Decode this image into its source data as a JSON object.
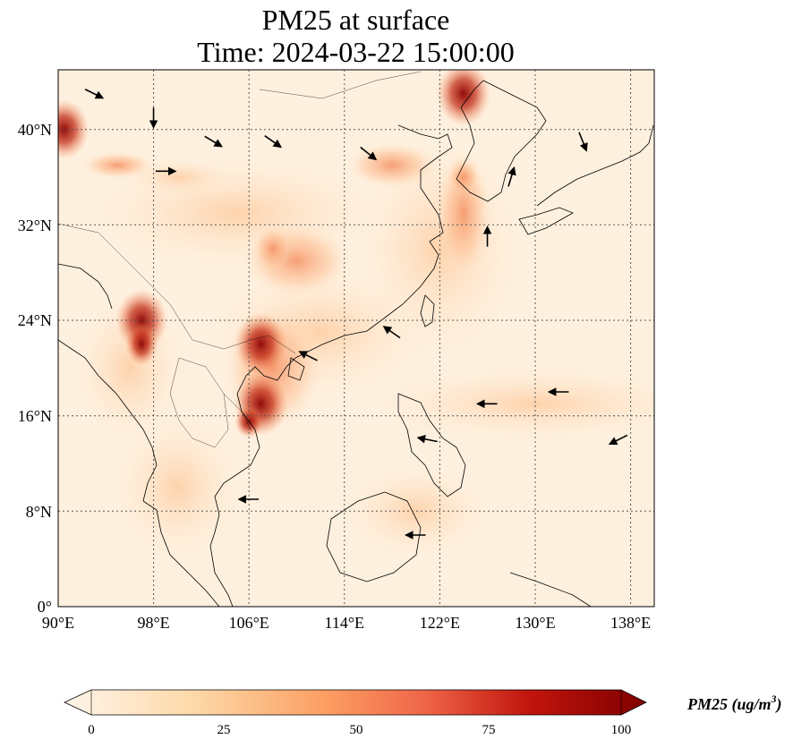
{
  "title_line1": "PM25 at surface",
  "title_line2": "Time: 2024-03-22 15:00:00",
  "lat_ticks": [
    "40°N",
    "32°N",
    "24°N",
    "16°N",
    "8°N",
    "0°"
  ],
  "lon_ticks": [
    "90°E",
    "98°E",
    "106°E",
    "114°E",
    "122°E",
    "130°E",
    "138°E"
  ],
  "colorbar": {
    "label": "PM25 (ug/m",
    "label_sup": "3",
    "label_close": ")",
    "ticks": [
      "0",
      "25",
      "50",
      "75",
      "100"
    ],
    "colors": [
      "#fff5eb",
      "#fdd0a2",
      "#fd8d3c",
      "#d94801",
      "#8c2d04",
      "#7f0000"
    ]
  },
  "chart_data": {
    "type": "heatmap",
    "variable": "PM25",
    "units": "ug/m3",
    "colormap": "OrRd",
    "range": [
      0,
      100
    ],
    "extent": {
      "lon": [
        90,
        140
      ],
      "lat": [
        0,
        45
      ]
    },
    "hotspots": [
      {
        "lon": 107,
        "lat": 17,
        "value": 100
      },
      {
        "lon": 107,
        "lat": 22,
        "value": 95
      },
      {
        "lon": 97,
        "lat": 24,
        "value": 95
      },
      {
        "lon": 124,
        "lat": 43,
        "value": 100
      },
      {
        "lon": 90.5,
        "lat": 40,
        "value": 90
      },
      {
        "lon": 108,
        "lat": 30,
        "value": 60
      },
      {
        "lon": 124,
        "lat": 36,
        "value": 45
      }
    ],
    "wind_vectors": [
      {
        "lon": 93,
        "lat": 43,
        "u": 1,
        "v": -0.5
      },
      {
        "lon": 98,
        "lat": 41,
        "u": 0,
        "v": -1
      },
      {
        "lon": 103,
        "lat": 39,
        "u": 1,
        "v": -0.6
      },
      {
        "lon": 99,
        "lat": 36.5,
        "u": 1,
        "v": 0
      },
      {
        "lon": 108,
        "lat": 39,
        "u": 1,
        "v": -0.7
      },
      {
        "lon": 116,
        "lat": 38,
        "u": 1,
        "v": -0.8
      },
      {
        "lon": 126,
        "lat": 31,
        "u": 0,
        "v": 1
      },
      {
        "lon": 128,
        "lat": 36,
        "u": 0.3,
        "v": 1
      },
      {
        "lon": 134,
        "lat": 39,
        "u": 0.4,
        "v": -1
      },
      {
        "lon": 111,
        "lat": 21,
        "u": -1,
        "v": 0.5
      },
      {
        "lon": 118,
        "lat": 23,
        "u": -1,
        "v": 0.7
      },
      {
        "lon": 126,
        "lat": 17,
        "u": -1,
        "v": 0
      },
      {
        "lon": 132,
        "lat": 18,
        "u": -1,
        "v": 0
      },
      {
        "lon": 137,
        "lat": 14,
        "u": -1,
        "v": -0.5
      },
      {
        "lon": 121,
        "lat": 14,
        "u": -1,
        "v": 0.2
      },
      {
        "lon": 120,
        "lat": 6,
        "u": -1,
        "v": 0
      },
      {
        "lon": 106,
        "lat": 9,
        "u": -1,
        "v": 0
      }
    ]
  }
}
